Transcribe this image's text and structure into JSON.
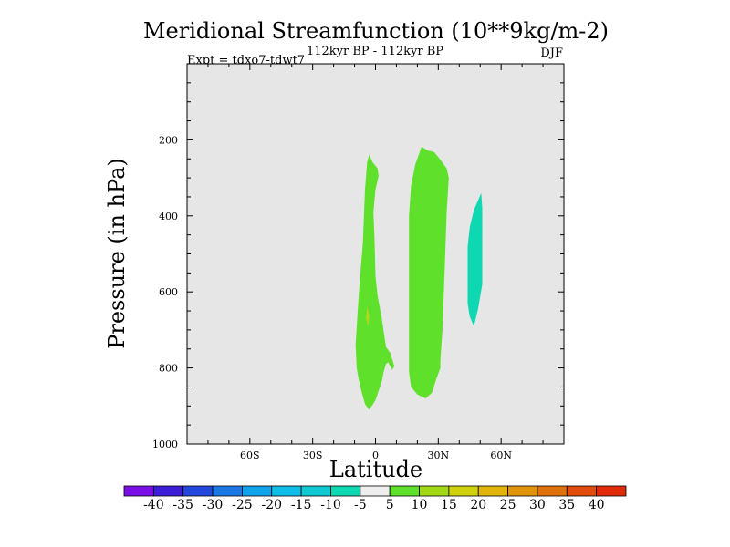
{
  "chart_data": {
    "type": "contour",
    "title": "Meridional Streamfunction (10**9kg/m-2)",
    "subtitle": "112kyr BP - 112kyr BP",
    "experiment_label": "Expt = tdxo7-tdwt7",
    "season": "DJF",
    "xlabel": "Latitude",
    "ylabel": "Pressure (in hPa)",
    "xlim": [
      -90,
      90
    ],
    "ylim": [
      1000,
      0
    ],
    "x_ticks": [
      {
        "value": -60,
        "label": "60S"
      },
      {
        "value": -30,
        "label": "30S"
      },
      {
        "value": 0,
        "label": "0"
      },
      {
        "value": 30,
        "label": "30N"
      },
      {
        "value": 60,
        "label": "60N"
      }
    ],
    "y_ticks": [
      {
        "value": 200,
        "label": "200"
      },
      {
        "value": 400,
        "label": "400"
      },
      {
        "value": 600,
        "label": "600"
      },
      {
        "value": 800,
        "label": "800"
      },
      {
        "value": 1000,
        "label": "1000"
      }
    ],
    "plot_background": "#e6e6e6",
    "regions": [
      {
        "name": "equatorial-positive-cell",
        "level": "5 to 10",
        "color": "#5fe02a",
        "points": [
          [
            -3,
            238
          ],
          [
            -1.5,
            258
          ],
          [
            1,
            275
          ],
          [
            1.5,
            295
          ],
          [
            0,
            330
          ],
          [
            -1,
            390
          ],
          [
            -0.5,
            460
          ],
          [
            0,
            560
          ],
          [
            1,
            610
          ],
          [
            3,
            670
          ],
          [
            5,
            745
          ],
          [
            7,
            760
          ],
          [
            9,
            795
          ],
          [
            8,
            805
          ],
          [
            6,
            785
          ],
          [
            5,
            790
          ],
          [
            4,
            808
          ],
          [
            3,
            835
          ],
          [
            0,
            885
          ],
          [
            -3,
            910
          ],
          [
            -5,
            895
          ],
          [
            -7,
            855
          ],
          [
            -8,
            830
          ],
          [
            -9,
            800
          ],
          [
            -9.5,
            740
          ],
          [
            -8.5,
            650
          ],
          [
            -7.5,
            570
          ],
          [
            -6,
            470
          ],
          [
            -5,
            330
          ],
          [
            -4,
            260
          ]
        ]
      },
      {
        "name": "equatorial-core-patch",
        "level": "15 to 20",
        "color": "#b8d614",
        "points": [
          [
            -4,
            640
          ],
          [
            -3,
            660
          ],
          [
            -3.5,
            690
          ],
          [
            -4.5,
            670
          ]
        ]
      },
      {
        "name": "subtropical-positive-cell",
        "level": "5 to 10",
        "color": "#5fe02a",
        "points": [
          [
            22,
            218
          ],
          [
            25,
            228
          ],
          [
            28,
            232
          ],
          [
            30,
            245
          ],
          [
            34,
            275
          ],
          [
            35,
            300
          ],
          [
            34,
            390
          ],
          [
            33,
            550
          ],
          [
            32,
            700
          ],
          [
            31,
            780
          ],
          [
            31,
            800
          ],
          [
            29,
            830
          ],
          [
            27,
            865
          ],
          [
            24,
            880
          ],
          [
            20,
            870
          ],
          [
            17,
            850
          ],
          [
            16,
            810
          ],
          [
            16,
            650
          ],
          [
            16,
            500
          ],
          [
            16,
            400
          ],
          [
            17,
            320
          ],
          [
            19,
            265
          ]
        ]
      },
      {
        "name": "midlatitude-negative-cell",
        "level": "-10 to -5",
        "color": "#0ed8b2",
        "points": [
          [
            50.5,
            340
          ],
          [
            51,
            380
          ],
          [
            51,
            580
          ],
          [
            49,
            645
          ],
          [
            47,
            690
          ],
          [
            45,
            665
          ],
          [
            44,
            630
          ],
          [
            44,
            480
          ],
          [
            45,
            430
          ],
          [
            47,
            385
          ]
        ]
      }
    ],
    "colorbar": {
      "tick_labels": [
        "-40",
        "-35",
        "-30",
        "-25",
        "-20",
        "-15",
        "-10",
        "-5",
        "5",
        "10",
        "15",
        "20",
        "25",
        "30",
        "35",
        "40"
      ],
      "colors": [
        "#7a10e6",
        "#3c1ed6",
        "#2448de",
        "#1a78e6",
        "#10a2ea",
        "#10bce8",
        "#0fc8d2",
        "#0ed8b2",
        "#eeeeee",
        "#5fe02a",
        "#a2d816",
        "#cfd00e",
        "#e0b40c",
        "#e0940c",
        "#e0700a",
        "#e04e0a",
        "#e02a0a"
      ]
    }
  }
}
